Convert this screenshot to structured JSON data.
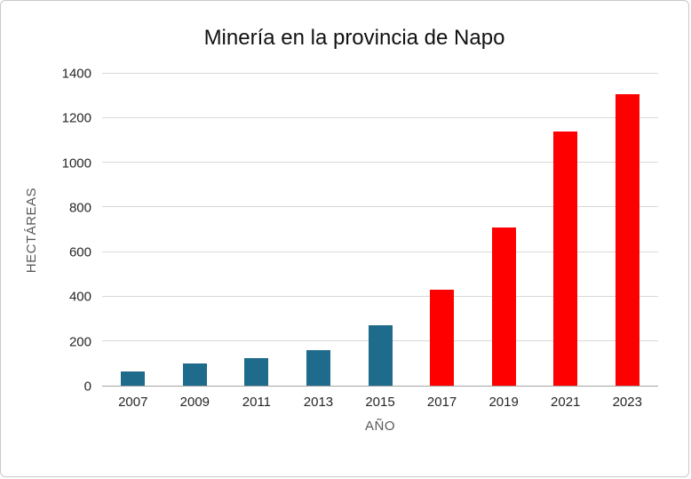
{
  "chart_data": {
    "type": "bar",
    "title": "Minería en la provincia de Napo",
    "xlabel": "AÑO",
    "ylabel": "HECTÁREAS",
    "categories": [
      "2007",
      "2009",
      "2011",
      "2013",
      "2015",
      "2017",
      "2019",
      "2021",
      "2023"
    ],
    "values": [
      65,
      100,
      125,
      160,
      270,
      430,
      710,
      1140,
      1310
    ],
    "bar_colors": [
      "#1f6b8c",
      "#1f6b8c",
      "#1f6b8c",
      "#1f6b8c",
      "#1f6b8c",
      "#fe0000",
      "#fe0000",
      "#fe0000",
      "#fe0000"
    ],
    "ylim": [
      0,
      1400
    ],
    "ytick_step": 200,
    "grid": true,
    "legend": "none",
    "colors": {
      "early_years": "#1f6b8c",
      "late_years": "#fe0000",
      "gridline": "#d9d9d9",
      "axis_line": "#a3a3a3",
      "tick_text": "#262626",
      "axis_label_text": "#595959",
      "title_text": "#111111"
    }
  }
}
